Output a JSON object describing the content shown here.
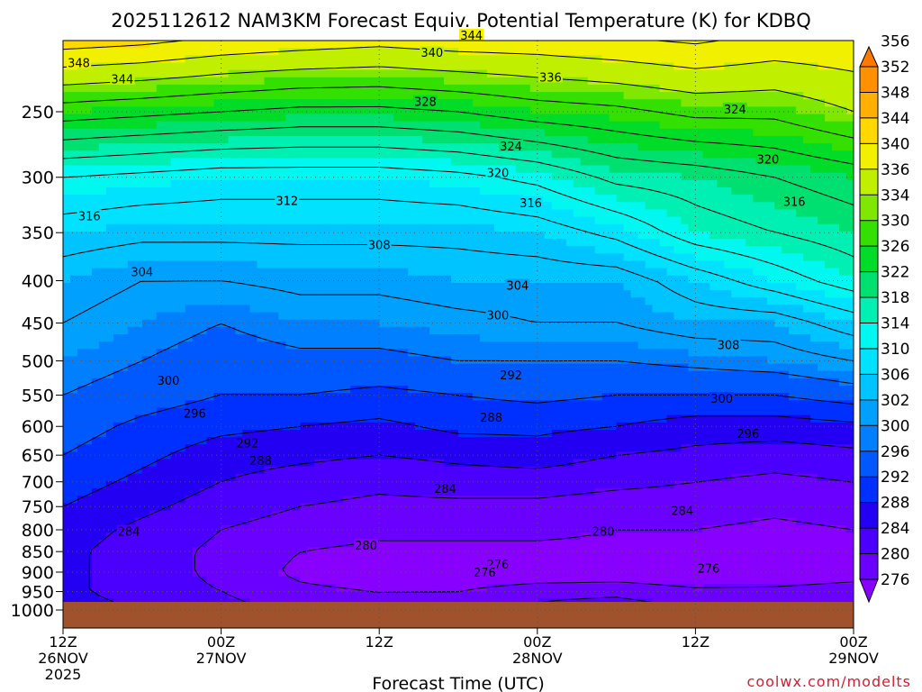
{
  "chart_data": {
    "type": "heatmap",
    "title": "2025112612 NAM3KM Forecast Equiv. Potential Temperature (K) for KDBQ",
    "xlabel": "Forecast Time (UTC)",
    "ylabel": "",
    "credit": "coolwx.com/modelts",
    "x_ticks": [
      {
        "hour": 0,
        "line1": "12Z",
        "line2": "26NOV",
        "line3": "2025"
      },
      {
        "hour": 12,
        "line1": "00Z",
        "line2": "27NOV",
        "line3": ""
      },
      {
        "hour": 24,
        "line1": "12Z",
        "line2": "",
        "line3": ""
      },
      {
        "hour": 36,
        "line1": "00Z",
        "line2": "28NOV",
        "line3": ""
      },
      {
        "hour": 48,
        "line1": "12Z",
        "line2": "",
        "line3": ""
      },
      {
        "hour": 60,
        "line1": "00Z",
        "line2": "29NOV",
        "line3": ""
      }
    ],
    "xlim_hours": [
      0,
      60
    ],
    "y_scale": "log-pressure",
    "ylim_hpa": [
      1000,
      200
    ],
    "y_ticks": [
      1000,
      950,
      900,
      850,
      800,
      750,
      700,
      650,
      600,
      550,
      500,
      450,
      400,
      350,
      300,
      250
    ],
    "surface_pressure_hpa": 980,
    "colorbar": {
      "levels": [
        276,
        280,
        284,
        288,
        292,
        296,
        300,
        302,
        306,
        310,
        314,
        318,
        322,
        326,
        330,
        334,
        336,
        340,
        344,
        348,
        352,
        356
      ],
      "colors": [
        "#8800ff",
        "#6a00ff",
        "#4b00ff",
        "#2400f2",
        "#0030ff",
        "#0058ff",
        "#0080ff",
        "#00a0ff",
        "#00c4ff",
        "#00e2ff",
        "#00f8f0",
        "#00f0b4",
        "#00e070",
        "#00dc28",
        "#34e000",
        "#80e800",
        "#c0f000",
        "#f0f000",
        "#ffd800",
        "#ffb000",
        "#ff9000",
        "#ff7800"
      ]
    },
    "contour_interval_k": 4,
    "levels_hpa": [
      980,
      950,
      900,
      850,
      800,
      750,
      700,
      650,
      600,
      550,
      500,
      450,
      400,
      350,
      300,
      250,
      200
    ],
    "times_hours": [
      0,
      6,
      12,
      18,
      24,
      30,
      36,
      42,
      48,
      54,
      60
    ],
    "theta_e_k": [
      [
        290,
        287,
        285,
        282,
        281,
        282,
        284,
        285,
        283,
        282,
        283
      ],
      [
        289,
        286,
        284,
        281,
        280,
        280,
        283,
        283,
        281,
        281,
        282
      ],
      [
        289,
        286,
        283,
        279,
        277,
        276,
        276,
        277,
        276,
        277,
        278
      ],
      [
        289,
        286,
        283,
        280,
        279,
        279,
        279,
        279,
        278,
        278,
        279
      ],
      [
        290,
        287,
        284,
        282,
        281,
        281,
        281,
        280,
        280,
        279,
        280
      ],
      [
        292,
        289,
        286,
        284,
        283,
        283,
        283,
        282,
        282,
        281,
        282
      ],
      [
        294,
        291,
        288,
        286,
        285,
        286,
        286,
        285,
        284,
        283,
        284
      ],
      [
        296,
        293,
        290,
        289,
        288,
        289,
        290,
        288,
        287,
        286,
        287
      ],
      [
        298,
        295,
        293,
        292,
        291,
        293,
        293,
        292,
        290,
        290,
        291
      ],
      [
        300,
        298,
        296,
        296,
        295,
        296,
        297,
        296,
        296,
        296,
        298
      ],
      [
        302,
        300,
        298,
        299,
        299,
        300,
        300,
        300,
        301,
        302,
        304
      ],
      [
        304,
        302,
        300,
        302,
        302,
        303,
        304,
        304,
        306,
        306,
        310
      ],
      [
        306,
        304,
        304,
        305,
        305,
        306,
        306,
        306,
        310,
        314,
        318
      ],
      [
        310,
        309,
        309,
        309,
        309,
        309,
        310,
        313,
        318,
        320,
        322
      ],
      [
        316,
        315,
        314,
        314,
        314,
        315,
        317,
        321,
        322,
        324,
        326
      ],
      [
        330,
        329,
        328,
        327,
        327,
        328,
        330,
        331,
        333,
        333,
        336
      ],
      [
        348,
        347,
        345,
        344,
        343,
        344,
        344,
        345,
        346,
        344,
        344
      ]
    ],
    "labels": [
      {
        "value": "344",
        "hour": 31,
        "hpa": 202
      },
      {
        "value": "340",
        "hour": 28,
        "hpa": 212
      },
      {
        "value": "348",
        "hour": 1.2,
        "hpa": 218
      },
      {
        "value": "344",
        "hour": 4.5,
        "hpa": 228
      },
      {
        "value": "336",
        "hour": 37,
        "hpa": 227
      },
      {
        "value": "328",
        "hour": 27.5,
        "hpa": 243
      },
      {
        "value": "324",
        "hour": 51,
        "hpa": 248
      },
      {
        "value": "324",
        "hour": 34,
        "hpa": 275
      },
      {
        "value": "320",
        "hour": 53.5,
        "hpa": 285
      },
      {
        "value": "320",
        "hour": 33,
        "hpa": 296
      },
      {
        "value": "316",
        "hour": 35.5,
        "hpa": 322
      },
      {
        "value": "312",
        "hour": 17,
        "hpa": 320
      },
      {
        "value": "316",
        "hour": 55.5,
        "hpa": 321
      },
      {
        "value": "316",
        "hour": 2,
        "hpa": 334
      },
      {
        "value": "308",
        "hour": 24,
        "hpa": 362
      },
      {
        "value": "304",
        "hour": 6,
        "hpa": 390
      },
      {
        "value": "304",
        "hour": 34.5,
        "hpa": 405
      },
      {
        "value": "300",
        "hour": 33,
        "hpa": 440
      },
      {
        "value": "308",
        "hour": 50.5,
        "hpa": 478
      },
      {
        "value": "292",
        "hour": 34,
        "hpa": 520
      },
      {
        "value": "300",
        "hour": 8,
        "hpa": 528
      },
      {
        "value": "300",
        "hour": 50,
        "hpa": 555
      },
      {
        "value": "296",
        "hour": 10,
        "hpa": 578
      },
      {
        "value": "288",
        "hour": 32.5,
        "hpa": 585
      },
      {
        "value": "296",
        "hour": 52,
        "hpa": 612
      },
      {
        "value": "292",
        "hour": 14,
        "hpa": 628
      },
      {
        "value": "288",
        "hour": 15,
        "hpa": 660
      },
      {
        "value": "284",
        "hour": 29,
        "hpa": 713
      },
      {
        "value": "284",
        "hour": 47,
        "hpa": 758
      },
      {
        "value": "284",
        "hour": 5,
        "hpa": 803
      },
      {
        "value": "280",
        "hour": 41,
        "hpa": 803
      },
      {
        "value": "280",
        "hour": 23,
        "hpa": 835
      },
      {
        "value": "276",
        "hour": 33,
        "hpa": 880
      },
      {
        "value": "276",
        "hour": 32,
        "hpa": 900
      },
      {
        "value": "276",
        "hour": 49,
        "hpa": 890
      }
    ]
  }
}
